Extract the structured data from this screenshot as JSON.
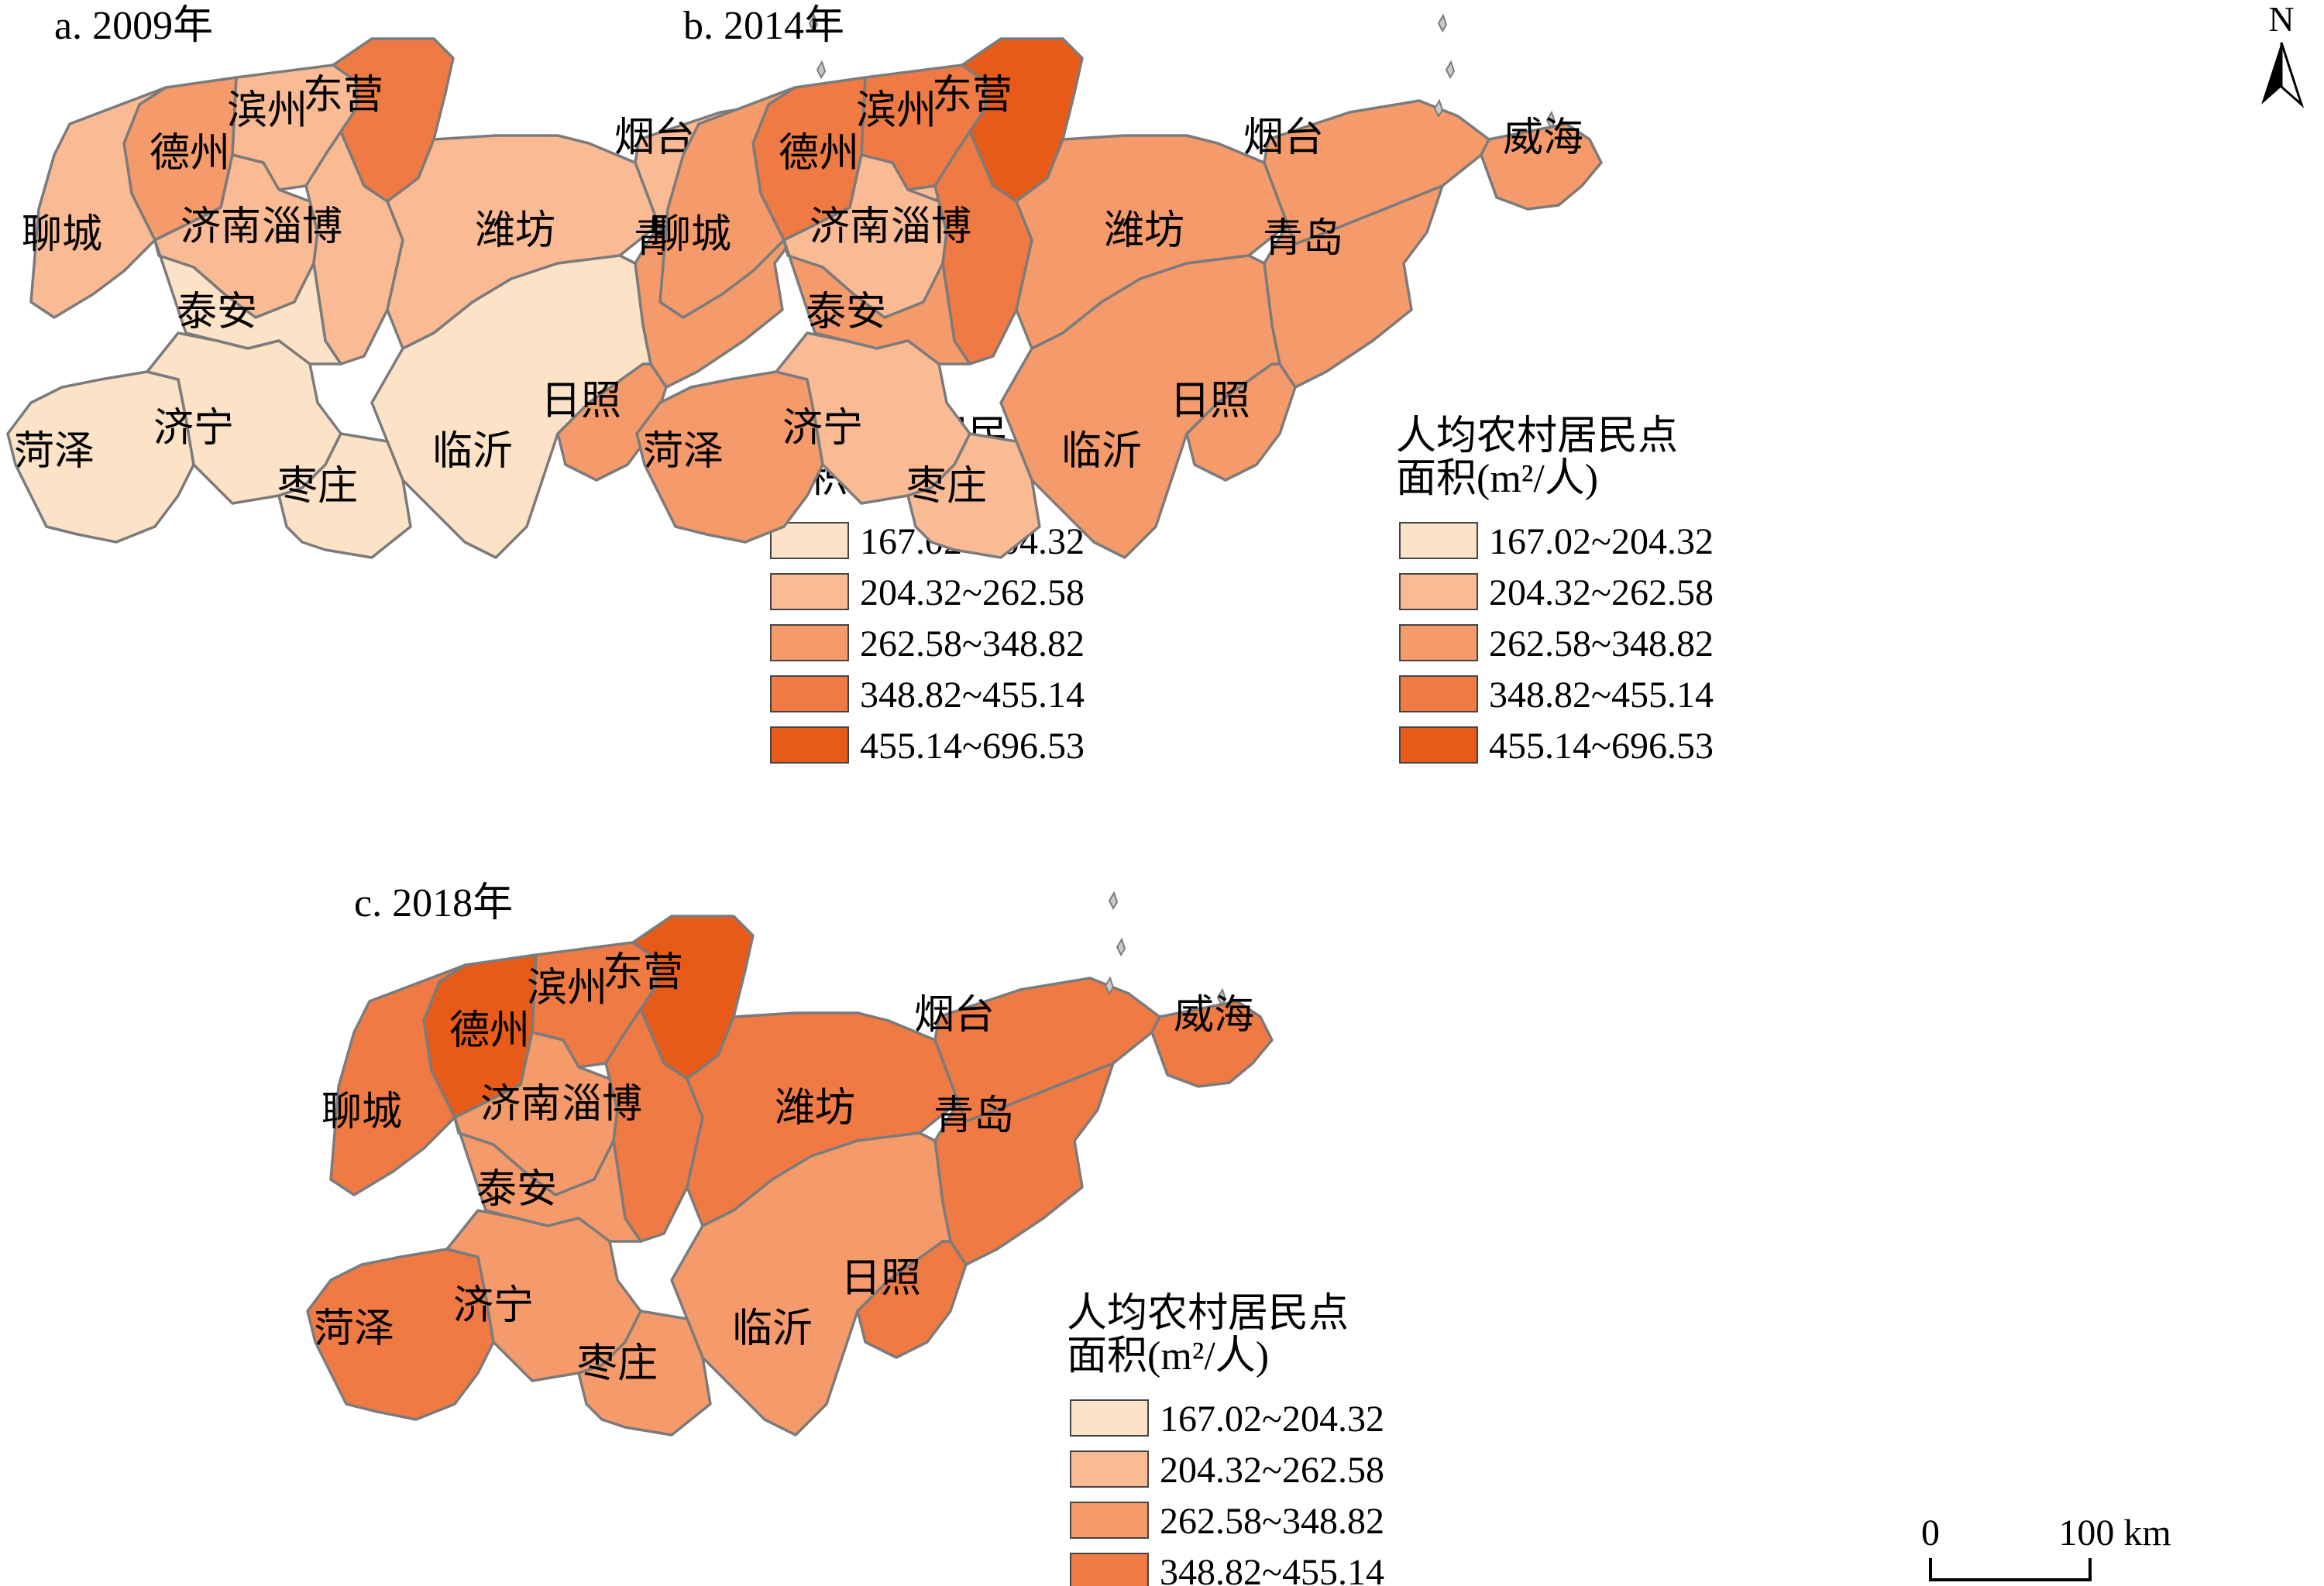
{
  "legend": {
    "title_line1": "人均农村居民点",
    "title_line2": "面积(m²/人)",
    "classes": [
      {
        "label": "167.02~204.32",
        "color": "#FCE2C6"
      },
      {
        "label": "204.32~262.58",
        "color": "#F9BA94"
      },
      {
        "label": "262.58~348.82",
        "color": "#F59A6A"
      },
      {
        "label": "348.82~455.14",
        "color": "#F07A44"
      },
      {
        "label": "455.14~696.53",
        "color": "#E85A17"
      }
    ]
  },
  "city_names": [
    "德州",
    "滨州",
    "东营",
    "烟台",
    "威海",
    "聊城",
    "济南",
    "淄博",
    "潍坊",
    "青岛",
    "泰安",
    "日照",
    "菏泽",
    "济宁",
    "临沂",
    "枣庄"
  ],
  "panels": [
    {
      "title": "a. 2009年",
      "classes": [
        2,
        1,
        3,
        1,
        1,
        1,
        1,
        1,
        1,
        2,
        0,
        2,
        0,
        0,
        0,
        0
      ]
    },
    {
      "title": "b. 2014年",
      "classes": [
        3,
        3,
        4,
        2,
        2,
        2,
        1,
        3,
        2,
        2,
        2,
        2,
        2,
        1,
        2,
        1
      ]
    },
    {
      "title": "c. 2018年",
      "classes": [
        4,
        3,
        4,
        3,
        3,
        3,
        2,
        3,
        3,
        3,
        2,
        3,
        3,
        2,
        2,
        2
      ]
    }
  ],
  "north_arrow": {
    "label": "N"
  },
  "scale_bar": {
    "zero": "0",
    "distance": "100 km"
  }
}
